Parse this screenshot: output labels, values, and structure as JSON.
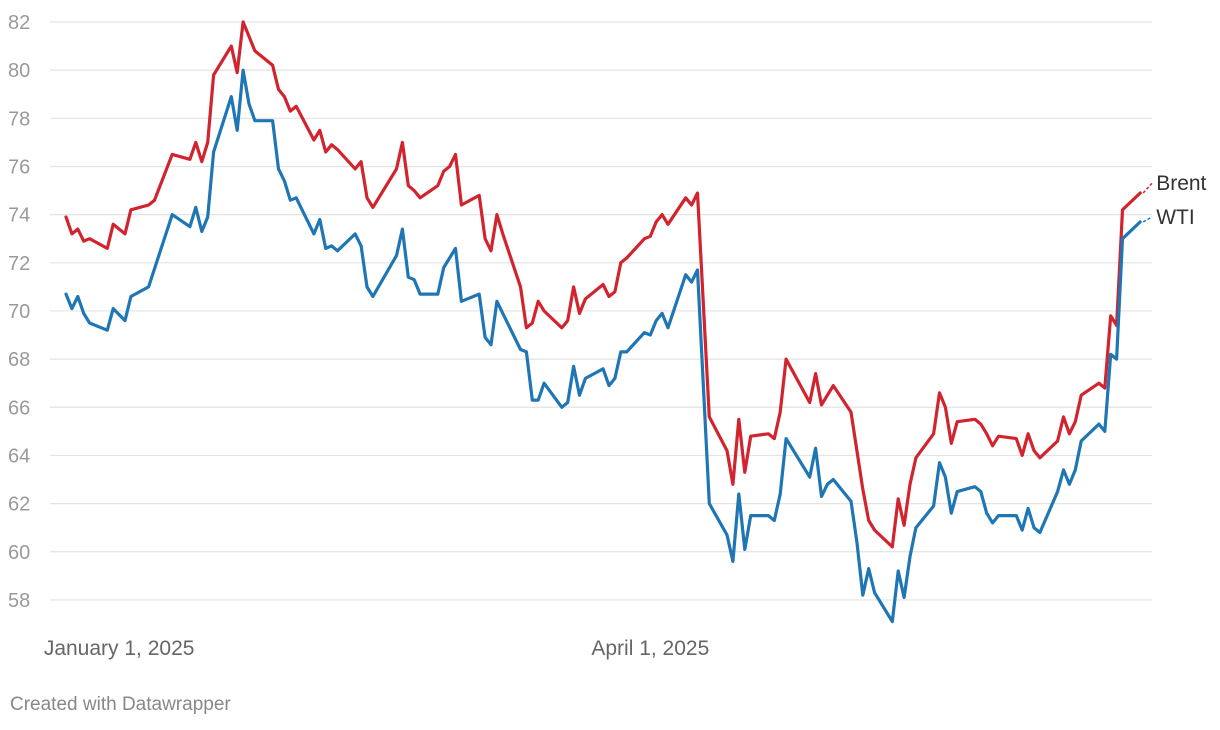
{
  "footer": {
    "credit": "Created with Datawrapper"
  },
  "chart_data": {
    "type": "line",
    "title": "",
    "xlabel": "",
    "ylabel": "",
    "ylim": [
      57,
      82
    ],
    "yticks": [
      58,
      60,
      62,
      64,
      66,
      68,
      70,
      72,
      74,
      76,
      78,
      80,
      82
    ],
    "xlim": [
      "2024-12-23",
      "2025-06-25"
    ],
    "x_tick_labels": [
      {
        "date": "2025-01-01",
        "label": "January 1, 2025"
      },
      {
        "date": "2025-04-01",
        "label": "April 1, 2025"
      }
    ],
    "grid": true,
    "legend": "end-of-line labels, right",
    "series": [
      {
        "name": "Brent",
        "color": "#d1242e",
        "points": [
          [
            "2024-12-23",
            73.9
          ],
          [
            "2024-12-24",
            73.2
          ],
          [
            "2024-12-25",
            73.4
          ],
          [
            "2024-12-26",
            72.9
          ],
          [
            "2024-12-27",
            73.0
          ],
          [
            "2024-12-30",
            72.6
          ],
          [
            "2024-12-31",
            73.6
          ],
          [
            "2025-01-02",
            73.2
          ],
          [
            "2025-01-03",
            74.2
          ],
          [
            "2025-01-06",
            74.4
          ],
          [
            "2025-01-07",
            74.6
          ],
          [
            "2025-01-10",
            76.5
          ],
          [
            "2025-01-13",
            76.3
          ],
          [
            "2025-01-14",
            77.0
          ],
          [
            "2025-01-15",
            76.2
          ],
          [
            "2025-01-16",
            77.0
          ],
          [
            "2025-01-17",
            79.8
          ],
          [
            "2025-01-20",
            81.0
          ],
          [
            "2025-01-21",
            79.9
          ],
          [
            "2025-01-22",
            82.0
          ],
          [
            "2025-01-23",
            81.4
          ],
          [
            "2025-01-24",
            80.8
          ],
          [
            "2025-01-27",
            80.2
          ],
          [
            "2025-01-28",
            79.2
          ],
          [
            "2025-01-29",
            78.9
          ],
          [
            "2025-01-30",
            78.3
          ],
          [
            "2025-01-31",
            78.5
          ],
          [
            "2025-02-03",
            77.1
          ],
          [
            "2025-02-04",
            77.5
          ],
          [
            "2025-02-05",
            76.6
          ],
          [
            "2025-02-06",
            76.9
          ],
          [
            "2025-02-07",
            76.7
          ],
          [
            "2025-02-10",
            75.9
          ],
          [
            "2025-02-11",
            76.2
          ],
          [
            "2025-02-12",
            74.7
          ],
          [
            "2025-02-13",
            74.3
          ],
          [
            "2025-02-17",
            75.9
          ],
          [
            "2025-02-18",
            77.0
          ],
          [
            "2025-02-19",
            75.2
          ],
          [
            "2025-02-20",
            75.0
          ],
          [
            "2025-02-21",
            74.7
          ],
          [
            "2025-02-24",
            75.2
          ],
          [
            "2025-02-25",
            75.8
          ],
          [
            "2025-02-26",
            76.0
          ],
          [
            "2025-02-27",
            76.5
          ],
          [
            "2025-02-28",
            74.4
          ],
          [
            "2025-03-03",
            74.8
          ],
          [
            "2025-03-04",
            73.0
          ],
          [
            "2025-03-05",
            72.5
          ],
          [
            "2025-03-06",
            74.0
          ],
          [
            "2025-03-07",
            73.2
          ],
          [
            "2025-03-10",
            71.0
          ],
          [
            "2025-03-11",
            69.3
          ],
          [
            "2025-03-12",
            69.5
          ],
          [
            "2025-03-13",
            70.4
          ],
          [
            "2025-03-14",
            70.0
          ],
          [
            "2025-03-17",
            69.3
          ],
          [
            "2025-03-18",
            69.6
          ],
          [
            "2025-03-19",
            71.0
          ],
          [
            "2025-03-20",
            69.9
          ],
          [
            "2025-03-21",
            70.5
          ],
          [
            "2025-03-24",
            71.1
          ],
          [
            "2025-03-25",
            70.6
          ],
          [
            "2025-03-26",
            70.8
          ],
          [
            "2025-03-27",
            72.0
          ],
          [
            "2025-03-28",
            72.2
          ],
          [
            "2025-03-31",
            73.0
          ],
          [
            "2025-04-01",
            73.1
          ],
          [
            "2025-04-02",
            73.7
          ],
          [
            "2025-04-03",
            74.0
          ],
          [
            "2025-04-04",
            73.6
          ],
          [
            "2025-04-07",
            74.7
          ],
          [
            "2025-04-08",
            74.4
          ],
          [
            "2025-04-09",
            74.9
          ],
          [
            "2025-04-11",
            65.6
          ],
          [
            "2025-04-14",
            64.2
          ],
          [
            "2025-04-15",
            62.8
          ],
          [
            "2025-04-16",
            65.5
          ],
          [
            "2025-04-17",
            63.3
          ],
          [
            "2025-04-18",
            64.8
          ],
          [
            "2025-04-21",
            64.9
          ],
          [
            "2025-04-22",
            64.7
          ],
          [
            "2025-04-23",
            65.8
          ],
          [
            "2025-04-24",
            68.0
          ],
          [
            "2025-04-28",
            66.2
          ],
          [
            "2025-04-29",
            67.4
          ],
          [
            "2025-04-30",
            66.1
          ],
          [
            "2025-05-01",
            66.5
          ],
          [
            "2025-05-02",
            66.9
          ],
          [
            "2025-05-05",
            65.8
          ],
          [
            "2025-05-06",
            64.2
          ],
          [
            "2025-05-07",
            62.6
          ],
          [
            "2025-05-08",
            61.3
          ],
          [
            "2025-05-09",
            60.9
          ],
          [
            "2025-05-12",
            60.2
          ],
          [
            "2025-05-13",
            62.2
          ],
          [
            "2025-05-14",
            61.1
          ],
          [
            "2025-05-15",
            62.8
          ],
          [
            "2025-05-16",
            63.9
          ],
          [
            "2025-05-19",
            64.9
          ],
          [
            "2025-05-20",
            66.6
          ],
          [
            "2025-05-21",
            66.0
          ],
          [
            "2025-05-22",
            64.5
          ],
          [
            "2025-05-23",
            65.4
          ],
          [
            "2025-05-26",
            65.5
          ],
          [
            "2025-05-27",
            65.3
          ],
          [
            "2025-05-28",
            64.9
          ],
          [
            "2025-05-29",
            64.4
          ],
          [
            "2025-05-30",
            64.8
          ],
          [
            "2025-06-02",
            64.7
          ],
          [
            "2025-06-03",
            64.0
          ],
          [
            "2025-06-04",
            64.9
          ],
          [
            "2025-06-05",
            64.2
          ],
          [
            "2025-06-06",
            63.9
          ],
          [
            "2025-06-09",
            64.6
          ],
          [
            "2025-06-10",
            65.6
          ],
          [
            "2025-06-11",
            64.9
          ],
          [
            "2025-06-12",
            65.4
          ],
          [
            "2025-06-13",
            66.5
          ],
          [
            "2025-06-16",
            67.0
          ],
          [
            "2025-06-17",
            66.8
          ],
          [
            "2025-06-18",
            69.8
          ],
          [
            "2025-06-19",
            69.4
          ],
          [
            "2025-06-20",
            74.2
          ],
          [
            "2025-06-23",
            74.9
          ]
        ]
      },
      {
        "name": "WTI",
        "color": "#1f76b4",
        "points": [
          [
            "2024-12-23",
            70.7
          ],
          [
            "2024-12-24",
            70.1
          ],
          [
            "2024-12-25",
            70.6
          ],
          [
            "2024-12-26",
            69.9
          ],
          [
            "2024-12-27",
            69.5
          ],
          [
            "2024-12-30",
            69.2
          ],
          [
            "2024-12-31",
            70.1
          ],
          [
            "2025-01-02",
            69.6
          ],
          [
            "2025-01-03",
            70.6
          ],
          [
            "2025-01-06",
            71.0
          ],
          [
            "2025-01-10",
            74.0
          ],
          [
            "2025-01-13",
            73.5
          ],
          [
            "2025-01-14",
            74.3
          ],
          [
            "2025-01-15",
            73.3
          ],
          [
            "2025-01-16",
            73.9
          ],
          [
            "2025-01-17",
            76.6
          ],
          [
            "2025-01-20",
            78.9
          ],
          [
            "2025-01-21",
            77.5
          ],
          [
            "2025-01-22",
            80.0
          ],
          [
            "2025-01-23",
            78.6
          ],
          [
            "2025-01-24",
            77.9
          ],
          [
            "2025-01-27",
            77.9
          ],
          [
            "2025-01-28",
            75.9
          ],
          [
            "2025-01-29",
            75.4
          ],
          [
            "2025-01-30",
            74.6
          ],
          [
            "2025-01-31",
            74.7
          ],
          [
            "2025-02-03",
            73.2
          ],
          [
            "2025-02-04",
            73.8
          ],
          [
            "2025-02-05",
            72.6
          ],
          [
            "2025-02-06",
            72.7
          ],
          [
            "2025-02-07",
            72.5
          ],
          [
            "2025-02-10",
            73.2
          ],
          [
            "2025-02-11",
            72.7
          ],
          [
            "2025-02-12",
            71.0
          ],
          [
            "2025-02-13",
            70.6
          ],
          [
            "2025-02-17",
            72.3
          ],
          [
            "2025-02-18",
            73.4
          ],
          [
            "2025-02-19",
            71.4
          ],
          [
            "2025-02-20",
            71.3
          ],
          [
            "2025-02-21",
            70.7
          ],
          [
            "2025-02-24",
            70.7
          ],
          [
            "2025-02-25",
            71.8
          ],
          [
            "2025-02-26",
            72.2
          ],
          [
            "2025-02-27",
            72.6
          ],
          [
            "2025-02-28",
            70.4
          ],
          [
            "2025-03-03",
            70.7
          ],
          [
            "2025-03-04",
            68.9
          ],
          [
            "2025-03-05",
            68.6
          ],
          [
            "2025-03-06",
            70.4
          ],
          [
            "2025-03-07",
            69.9
          ],
          [
            "2025-03-10",
            68.4
          ],
          [
            "2025-03-11",
            68.3
          ],
          [
            "2025-03-12",
            66.3
          ],
          [
            "2025-03-13",
            66.3
          ],
          [
            "2025-03-14",
            67.0
          ],
          [
            "2025-03-17",
            66.0
          ],
          [
            "2025-03-18",
            66.2
          ],
          [
            "2025-03-19",
            67.7
          ],
          [
            "2025-03-20",
            66.5
          ],
          [
            "2025-03-21",
            67.2
          ],
          [
            "2025-03-24",
            67.6
          ],
          [
            "2025-03-25",
            66.9
          ],
          [
            "2025-03-26",
            67.2
          ],
          [
            "2025-03-27",
            68.3
          ],
          [
            "2025-03-28",
            68.3
          ],
          [
            "2025-03-31",
            69.1
          ],
          [
            "2025-04-01",
            69.0
          ],
          [
            "2025-04-02",
            69.6
          ],
          [
            "2025-04-03",
            69.9
          ],
          [
            "2025-04-04",
            69.3
          ],
          [
            "2025-04-07",
            71.5
          ],
          [
            "2025-04-08",
            71.2
          ],
          [
            "2025-04-09",
            71.7
          ],
          [
            "2025-04-11",
            62.0
          ],
          [
            "2025-04-14",
            60.7
          ],
          [
            "2025-04-15",
            59.6
          ],
          [
            "2025-04-16",
            62.4
          ],
          [
            "2025-04-17",
            60.1
          ],
          [
            "2025-04-18",
            61.5
          ],
          [
            "2025-04-21",
            61.5
          ],
          [
            "2025-04-22",
            61.3
          ],
          [
            "2025-04-23",
            62.4
          ],
          [
            "2025-04-24",
            64.7
          ],
          [
            "2025-04-28",
            63.1
          ],
          [
            "2025-04-29",
            64.3
          ],
          [
            "2025-04-30",
            62.3
          ],
          [
            "2025-05-01",
            62.8
          ],
          [
            "2025-05-02",
            63.0
          ],
          [
            "2025-05-05",
            62.1
          ],
          [
            "2025-05-06",
            60.4
          ],
          [
            "2025-05-07",
            58.2
          ],
          [
            "2025-05-08",
            59.3
          ],
          [
            "2025-05-09",
            58.3
          ],
          [
            "2025-05-12",
            57.1
          ],
          [
            "2025-05-13",
            59.2
          ],
          [
            "2025-05-14",
            58.1
          ],
          [
            "2025-05-15",
            59.8
          ],
          [
            "2025-05-16",
            61.0
          ],
          [
            "2025-05-19",
            61.9
          ],
          [
            "2025-05-20",
            63.7
          ],
          [
            "2025-05-21",
            63.1
          ],
          [
            "2025-05-22",
            61.6
          ],
          [
            "2025-05-23",
            62.5
          ],
          [
            "2025-05-26",
            62.7
          ],
          [
            "2025-05-27",
            62.5
          ],
          [
            "2025-05-28",
            61.6
          ],
          [
            "2025-05-29",
            61.2
          ],
          [
            "2025-05-30",
            61.5
          ],
          [
            "2025-06-02",
            61.5
          ],
          [
            "2025-06-03",
            60.9
          ],
          [
            "2025-06-04",
            61.8
          ],
          [
            "2025-06-05",
            61.0
          ],
          [
            "2025-06-06",
            60.8
          ],
          [
            "2025-06-09",
            62.5
          ],
          [
            "2025-06-10",
            63.4
          ],
          [
            "2025-06-11",
            62.8
          ],
          [
            "2025-06-12",
            63.4
          ],
          [
            "2025-06-13",
            64.6
          ],
          [
            "2025-06-16",
            65.3
          ],
          [
            "2025-06-17",
            65.0
          ],
          [
            "2025-06-18",
            68.2
          ],
          [
            "2025-06-19",
            68.0
          ],
          [
            "2025-06-20",
            73.0
          ],
          [
            "2025-06-23",
            73.7
          ]
        ]
      }
    ]
  }
}
